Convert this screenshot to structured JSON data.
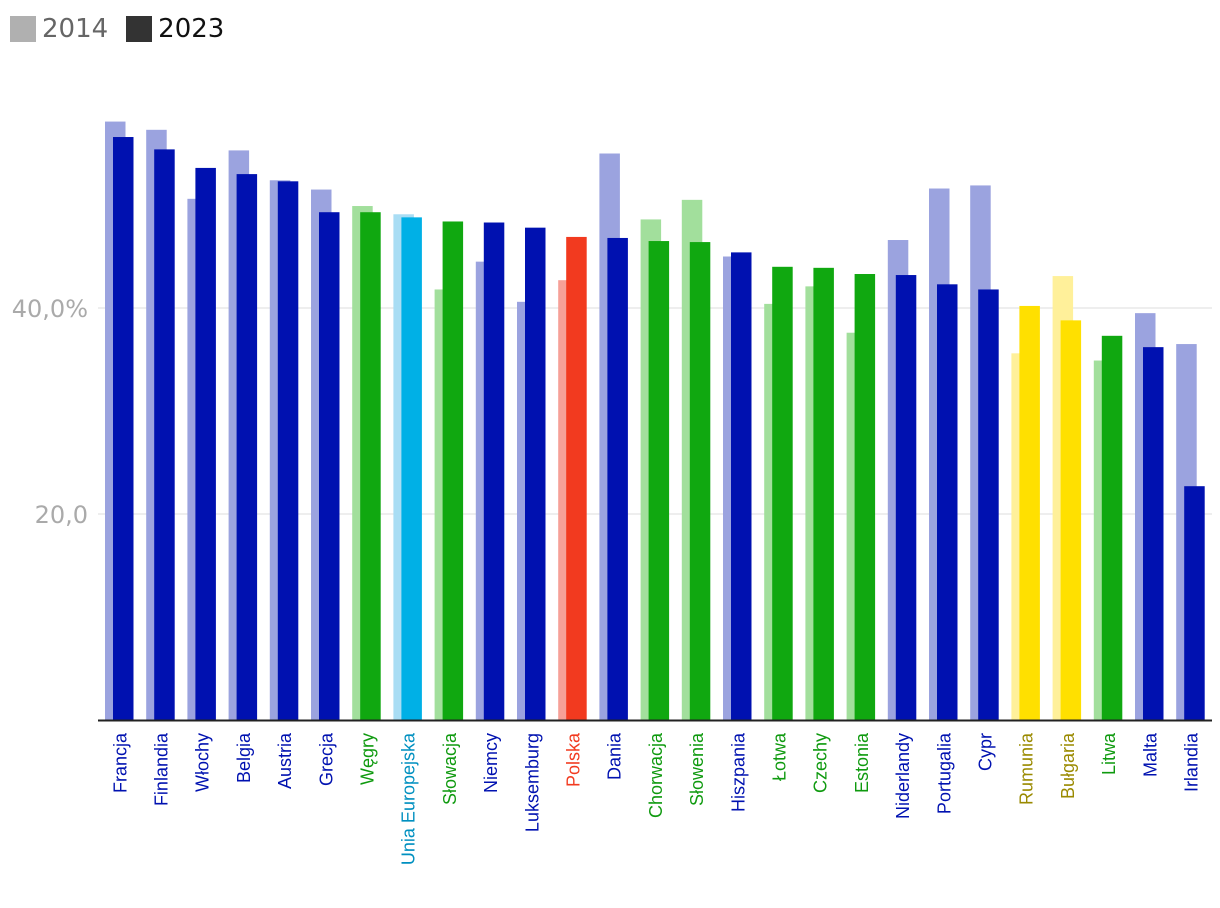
{
  "chart_data": {
    "type": "bar",
    "title": "",
    "xlabel": "",
    "ylabel": "",
    "ylim": [
      0,
      60
    ],
    "yticks": [
      {
        "value": 20,
        "label": "20,0"
      },
      {
        "value": 40,
        "label": "40,0%"
      }
    ],
    "grid": true,
    "legend_position": "top-left",
    "legend": [
      {
        "name": "2014",
        "color": "#b0b0b0",
        "text_color": "#666666"
      },
      {
        "name": "2023",
        "color": "#333333",
        "text_color": "#111111"
      }
    ],
    "categories": [
      "Francja",
      "Finlandia",
      "Włochy",
      "Belgia",
      "Austria",
      "Grecja",
      "Węgry",
      "Unia Europejska",
      "Słowacja",
      "Niemcy",
      "Luksemburg",
      "Polska",
      "Dania",
      "Chorwacja",
      "Słowenia",
      "Hiszpania",
      "Łotwa",
      "Czechy",
      "Estonia",
      "Niderlandy",
      "Portugalia",
      "Cypr",
      "Rumunia",
      "Bułgaria",
      "Litwa",
      "Malta",
      "Irlandia"
    ],
    "category_groups": [
      "blue",
      "blue",
      "blue",
      "blue",
      "blue",
      "blue",
      "green",
      "eu",
      "green",
      "blue",
      "blue",
      "pl",
      "blue",
      "green",
      "green",
      "blue",
      "green",
      "green",
      "green",
      "blue",
      "blue",
      "blue",
      "yellow",
      "yellow",
      "green",
      "blue",
      "blue"
    ],
    "series": [
      {
        "name": "2014",
        "values": [
          58.1,
          57.3,
          50.6,
          55.3,
          52.4,
          51.5,
          49.9,
          49.1,
          41.8,
          44.5,
          40.6,
          42.7,
          55.0,
          48.6,
          50.5,
          45.0,
          40.4,
          42.1,
          37.6,
          46.6,
          51.6,
          51.9,
          35.6,
          43.1,
          34.9,
          39.5,
          36.5
        ]
      },
      {
        "name": "2023",
        "values": [
          56.6,
          55.4,
          53.6,
          53.0,
          52.3,
          49.3,
          49.3,
          48.8,
          48.4,
          48.3,
          47.8,
          46.9,
          46.8,
          46.5,
          46.4,
          45.4,
          44.0,
          43.9,
          43.3,
          43.2,
          42.3,
          41.8,
          40.2,
          38.8,
          37.3,
          36.2,
          22.7
        ]
      }
    ],
    "group_colors": {
      "blue": {
        "light": "#9ba3df",
        "dark": "#0011b0",
        "label": "#0011b0"
      },
      "green": {
        "light": "#a2df9c",
        "dark": "#10a810",
        "label": "#0f9a0f"
      },
      "eu": {
        "light": "#a9ddf4",
        "dark": "#00b0e6",
        "label": "#0090c0"
      },
      "pl": {
        "light": "#f6a097",
        "dark": "#f23a1f",
        "label": "#f23a1f"
      },
      "yellow": {
        "light": "#fff09a",
        "dark": "#ffe000",
        "label": "#9a8a00"
      }
    },
    "axis_color": "#222222",
    "grid_color": "#dddddd",
    "tick_label_color": "#aaaaaa"
  }
}
